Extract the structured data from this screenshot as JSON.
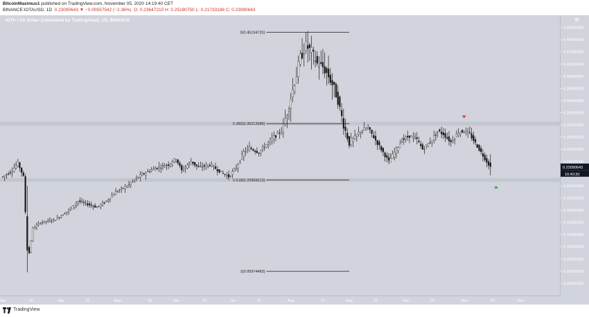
{
  "header": {
    "author": "BitcoinMaximus1",
    "published": " published on TradingView.com, November 05, 2020 14:19:40 CET",
    "symbol_line": "BINANCE:IOTAUSD, 1D",
    "change": "0.23090643 ▼ −0.00557542 (−2.36%)",
    "ohlc": "O: 0.23647210  H: 0.25190750  L: 0.21733188  C: 0.23090643"
  },
  "chart_title": "IOTA / US Dollar (calculated by TradingView), 1D, BINANCE",
  "footer": {
    "brand": "TradingView"
  },
  "price_labels": {
    "last": "0.23090643",
    "countdown": "10:40:30"
  },
  "colors": {
    "background": "#d1d4dc",
    "candle": "#1a1a1a",
    "fib_line": "#1a1a1a",
    "fib_zone": "#c3c6ce",
    "down_marker": "#e53935",
    "up_marker": "#43a047"
  },
  "chart_data": {
    "type": "candlestick",
    "title": "IOTA / US Dollar (calculated by TradingView), 1D, BINANCE",
    "ylim": [
      0.02,
      0.48
    ],
    "yticks": [
      "0.46000000",
      "0.44000000",
      "0.42000000",
      "0.40000000",
      "0.38000000",
      "0.36000000",
      "0.34000000",
      "0.32000000",
      "0.30000000",
      "0.28000000",
      "0.26000000",
      "0.24000000",
      "0.22000000",
      "0.20000000",
      "0.18000000",
      "0.16000000",
      "0.14000000",
      "0.12000000",
      "0.10000000",
      "0.08000000",
      "0.06000000",
      "0.04000000"
    ],
    "ytick_values": [
      0.46,
      0.44,
      0.42,
      0.4,
      0.38,
      0.36,
      0.34,
      0.32,
      0.3,
      0.28,
      0.26,
      0.24,
      0.22,
      0.2,
      0.18,
      0.16,
      0.14,
      0.12,
      0.1,
      0.08,
      0.06,
      0.04
    ],
    "xticks": [
      "Mar",
      "16",
      "Apr",
      "15",
      "May",
      "18",
      "Jun",
      "15",
      "Jul",
      "15",
      "Aug",
      "17",
      "Sep",
      "15",
      "Oct",
      "15",
      "Nov",
      "16",
      "Dec"
    ],
    "xtick_days": [
      0,
      15,
      31,
      45,
      61,
      78,
      92,
      107,
      122,
      136,
      153,
      170,
      184,
      198,
      214,
      228,
      245,
      260,
      275
    ],
    "days_total": 290,
    "path_points": [
      [
        0,
        0.215
      ],
      [
        5,
        0.225
      ],
      [
        8,
        0.238
      ],
      [
        11,
        0.215
      ],
      [
        13,
        0.1
      ],
      [
        14,
        0.09
      ],
      [
        16,
        0.13
      ],
      [
        20,
        0.14
      ],
      [
        28,
        0.145
      ],
      [
        35,
        0.16
      ],
      [
        40,
        0.175
      ],
      [
        45,
        0.17
      ],
      [
        50,
        0.165
      ],
      [
        55,
        0.175
      ],
      [
        60,
        0.19
      ],
      [
        66,
        0.2
      ],
      [
        72,
        0.215
      ],
      [
        78,
        0.225
      ],
      [
        82,
        0.23
      ],
      [
        88,
        0.235
      ],
      [
        92,
        0.245
      ],
      [
        95,
        0.225
      ],
      [
        100,
        0.24
      ],
      [
        104,
        0.23
      ],
      [
        110,
        0.235
      ],
      [
        116,
        0.222
      ],
      [
        120,
        0.215
      ],
      [
        124,
        0.23
      ],
      [
        128,
        0.255
      ],
      [
        131,
        0.262
      ],
      [
        136,
        0.255
      ],
      [
        140,
        0.268
      ],
      [
        144,
        0.28
      ],
      [
        148,
        0.29
      ],
      [
        151,
        0.32
      ],
      [
        155,
        0.37
      ],
      [
        158,
        0.41
      ],
      [
        161,
        0.43
      ],
      [
        164,
        0.42
      ],
      [
        167,
        0.4
      ],
      [
        170,
        0.395
      ],
      [
        173,
        0.38
      ],
      [
        176,
        0.36
      ],
      [
        178,
        0.34
      ],
      [
        181,
        0.3
      ],
      [
        184,
        0.27
      ],
      [
        187,
        0.28
      ],
      [
        190,
        0.29
      ],
      [
        194,
        0.295
      ],
      [
        198,
        0.275
      ],
      [
        202,
        0.255
      ],
      [
        205,
        0.24
      ],
      [
        208,
        0.255
      ],
      [
        212,
        0.275
      ],
      [
        216,
        0.282
      ],
      [
        220,
        0.276
      ],
      [
        223,
        0.26
      ],
      [
        227,
        0.272
      ],
      [
        231,
        0.29
      ],
      [
        234,
        0.285
      ],
      [
        238,
        0.272
      ],
      [
        242,
        0.288
      ],
      [
        245,
        0.29
      ],
      [
        248,
        0.285
      ],
      [
        251,
        0.27
      ],
      [
        254,
        0.255
      ],
      [
        257,
        0.24
      ],
      [
        259,
        0.231
      ]
    ],
    "fib_levels": [
      {
        "label": "0(0.45194720)",
        "value": 0.4519472
      },
      {
        "label": "0.382(0.30212589)",
        "value": 0.30212589
      },
      {
        "label": "0.618(0.20956613)",
        "value": 0.20956613
      },
      {
        "label": "1(0.05974483)",
        "value": 0.05974483
      }
    ],
    "last_price": 0.23090643
  }
}
